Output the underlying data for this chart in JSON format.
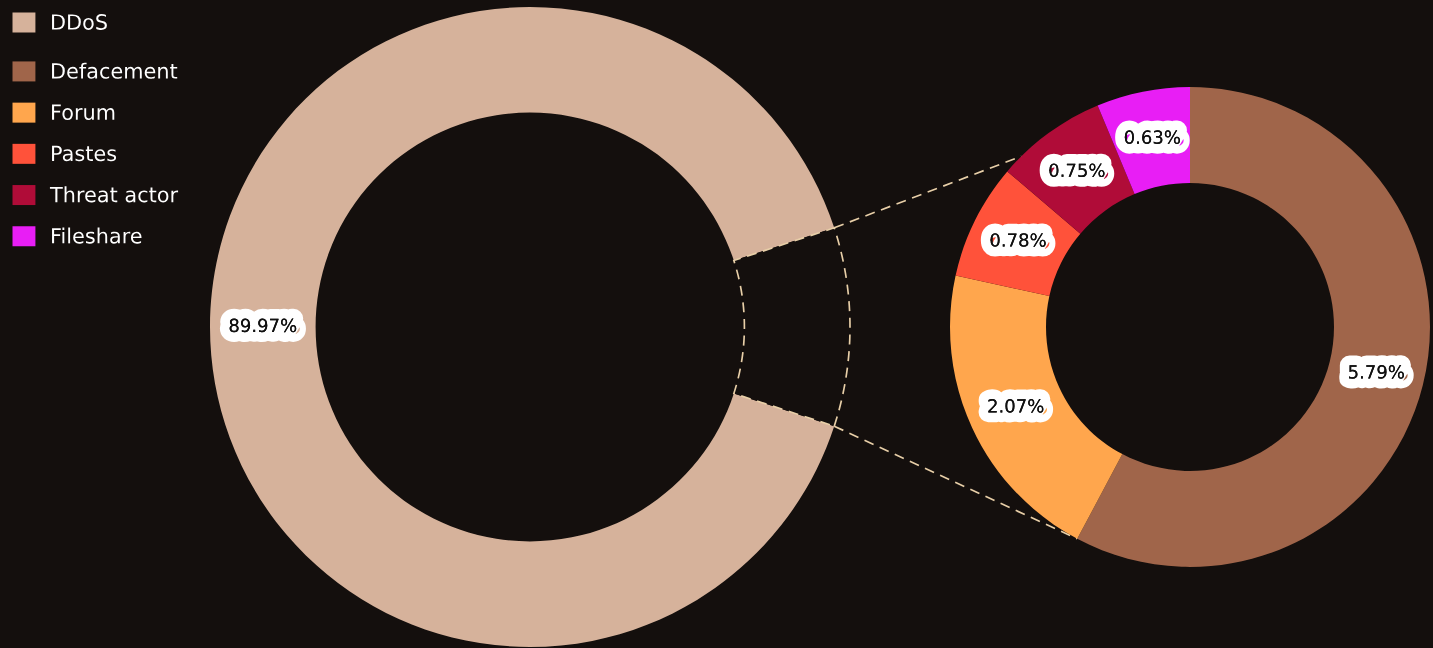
{
  "chart_data": [
    {
      "type": "donut",
      "categories": [
        "DDoS",
        null
      ],
      "values": [
        89.97,
        10.03
      ],
      "colors": [
        "#d6b29b",
        "#140f0d"
      ],
      "value_labels": [
        "89.97%",
        null
      ],
      "legend": "top left"
    },
    {
      "type": "donut",
      "categories": [
        "Defacement",
        "Forum",
        "Pastes",
        "Threat actor",
        "Fileshare"
      ],
      "values": [
        5.79,
        2.07,
        0.78,
        0.75,
        0.63
      ],
      "colors": [
        "#a0654a",
        "#ffa64d",
        "#ff523a",
        "#b00c38",
        "#e81ef5"
      ],
      "value_labels": [
        "5.79%",
        "2.07%",
        "0.78%",
        "0.75%",
        "0.63%"
      ],
      "legend": "top left"
    }
  ]
}
